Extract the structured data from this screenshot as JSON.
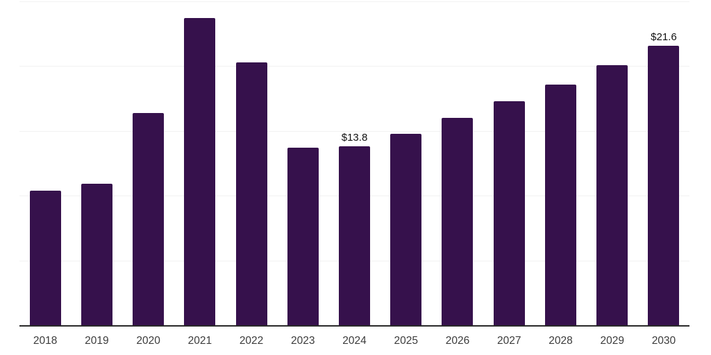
{
  "chart_data": {
    "type": "bar",
    "title": "",
    "xlabel": "",
    "ylabel": "",
    "categories": [
      "2018",
      "2019",
      "2020",
      "2021",
      "2022",
      "2023",
      "2024",
      "2025",
      "2026",
      "2027",
      "2028",
      "2029",
      "2030"
    ],
    "values": [
      10.4,
      10.9,
      16.4,
      23.7,
      20.3,
      13.7,
      13.8,
      14.8,
      16.0,
      17.3,
      18.6,
      20.1,
      21.6
    ],
    "data_labels": {
      "2024": "$13.8",
      "2030": "$21.6"
    },
    "ylim": [
      0,
      25
    ],
    "grid": {
      "visible": true,
      "interval": 5,
      "color": "#f2f2f2"
    },
    "legend": null,
    "colors": {
      "bar": "#36114C",
      "axis_line": "#2a2a2a",
      "tick_label": "#3c3c3c",
      "data_label": "#111111",
      "background": "#ffffff"
    }
  }
}
